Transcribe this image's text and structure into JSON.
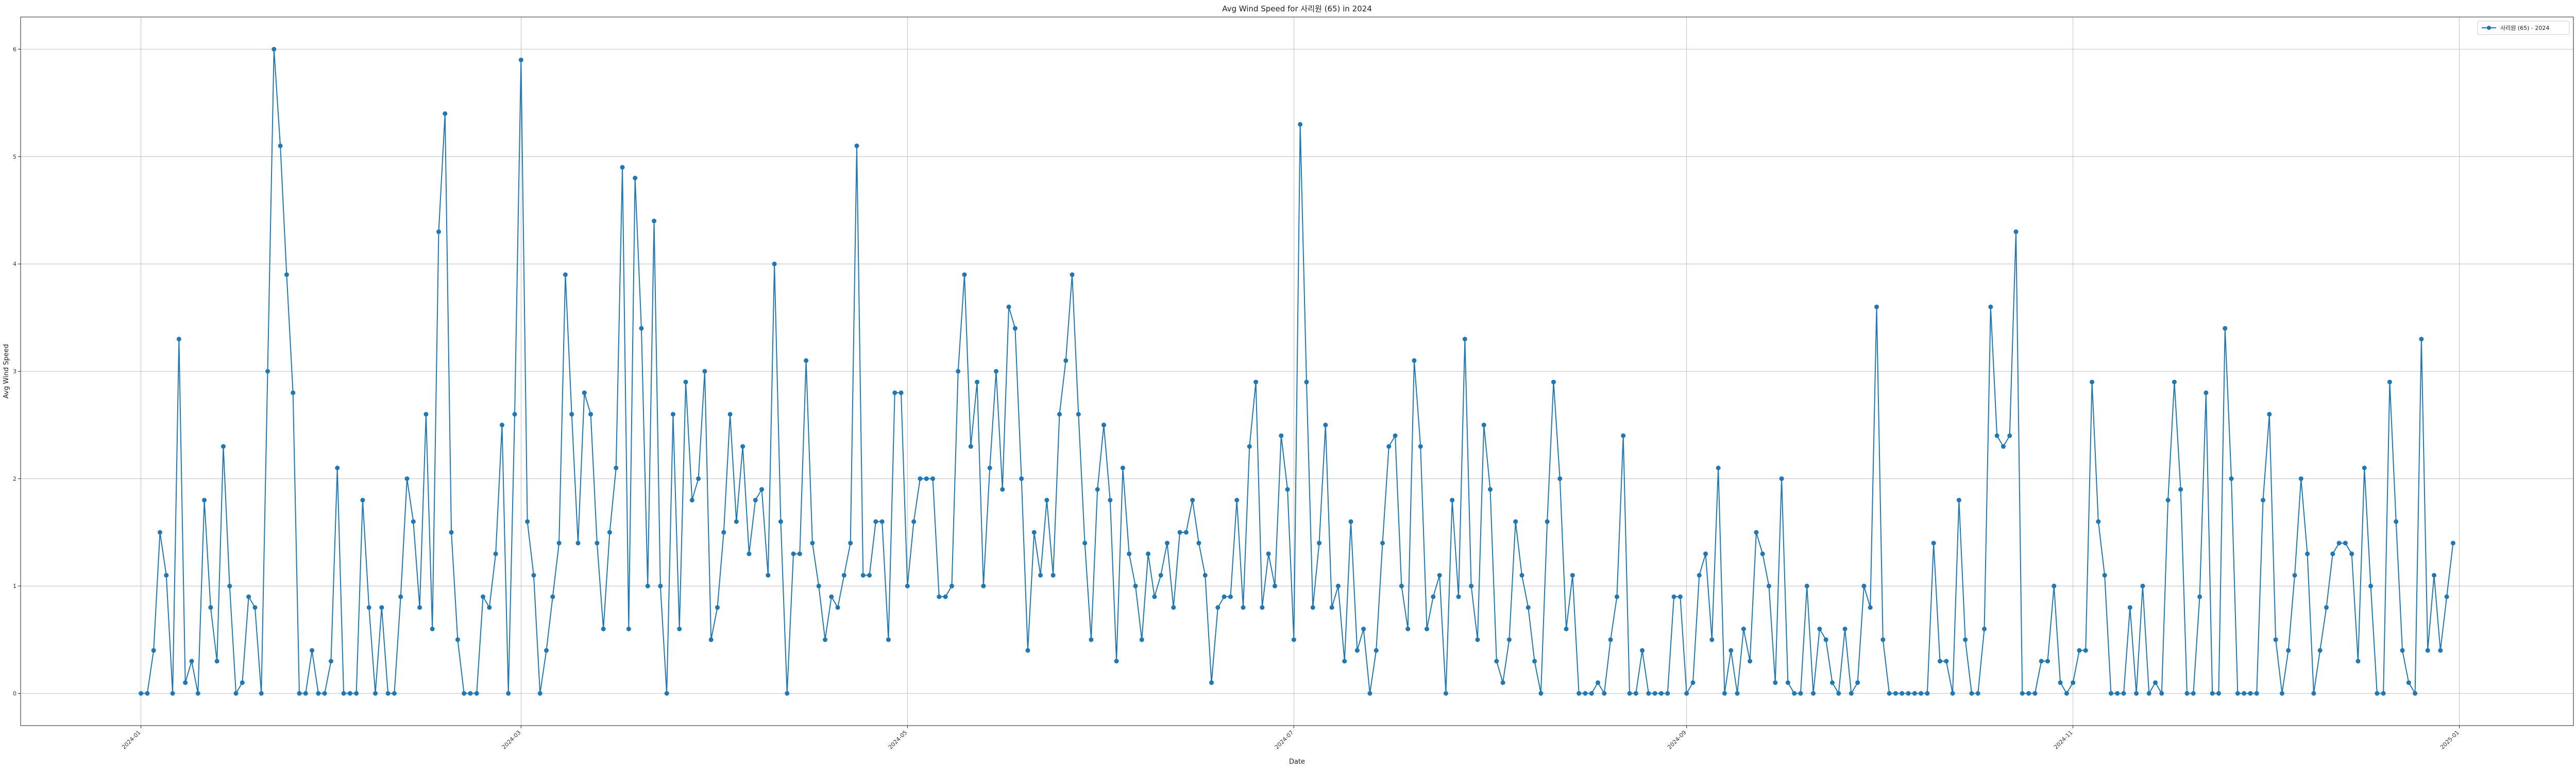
{
  "chart_data": {
    "type": "line",
    "title": "Avg Wind Speed for 사리원 (65) in 2024",
    "xlabel": "Date",
    "ylabel": "Avg Wind Speed",
    "x_start": "2024-01-01",
    "xlim": [
      "2023-12-13",
      "2025-01-19"
    ],
    "ylim": [
      -0.3,
      6.3
    ],
    "y_ticks": [
      0,
      1,
      2,
      3,
      4,
      5,
      6
    ],
    "x_ticks": [
      {
        "date": "2024-01-01",
        "label": "2024-01"
      },
      {
        "date": "2024-03-01",
        "label": "2024-03"
      },
      {
        "date": "2024-05-01",
        "label": "2024-05"
      },
      {
        "date": "2024-07-01",
        "label": "2024-07"
      },
      {
        "date": "2024-09-01",
        "label": "2024-09"
      },
      {
        "date": "2024-11-01",
        "label": "2024-11"
      },
      {
        "date": "2025-01-01",
        "label": "2025-01"
      }
    ],
    "grid": true,
    "legend_position": "top-right",
    "color": "#1f77b4",
    "series": [
      {
        "name": "사리원 (65) - 2024",
        "values": [
          0,
          0,
          0.4,
          1.5,
          1.1,
          0,
          3.3,
          0.1,
          0.3,
          0,
          1.8,
          0.8,
          0.3,
          2.3,
          1,
          0,
          0.1,
          0.9,
          0.8,
          0,
          3,
          6,
          5.1,
          3.9,
          2.8,
          0,
          0,
          0.4,
          0,
          0,
          0.3,
          2.1,
          0,
          0,
          0,
          1.8,
          0.8,
          0,
          0.8,
          0,
          0,
          0.9,
          2,
          1.6,
          0.8,
          2.6,
          0.6,
          4.3,
          5.4,
          1.5,
          0.5,
          0,
          0,
          0,
          0.9,
          0.8,
          1.3,
          2.5,
          0,
          2.6,
          5.9,
          1.6,
          1.1,
          0,
          0.4,
          0.9,
          1.4,
          3.9,
          2.6,
          1.4,
          2.8,
          2.6,
          1.4,
          0.6,
          1.5,
          2.1,
          4.9,
          0.6,
          4.8,
          3.4,
          1,
          4.4,
          1,
          0,
          2.6,
          0.6,
          2.9,
          1.8,
          2,
          3,
          0.5,
          0.8,
          1.5,
          2.6,
          1.6,
          2.3,
          1.3,
          1.8,
          1.9,
          1.1,
          4,
          1.6,
          0,
          1.3,
          1.3,
          3.1,
          1.4,
          1,
          0.5,
          0.9,
          0.8,
          1.1,
          1.4,
          5.1,
          1.1,
          1.1,
          1.6,
          1.6,
          0.5,
          2.8,
          2.8,
          1,
          1.6,
          2,
          2,
          2,
          0.9,
          0.9,
          1,
          3,
          3.9,
          2.3,
          2.9,
          1,
          2.1,
          3,
          1.9,
          3.6,
          3.4,
          2,
          0.4,
          1.5,
          1.1,
          1.8,
          1.1,
          2.6,
          3.1,
          3.9,
          2.6,
          1.4,
          0.5,
          1.9,
          2.5,
          1.8,
          0.3,
          2.1,
          1.3,
          1,
          0.5,
          1.3,
          0.9,
          1.1,
          1.4,
          0.8,
          1.5,
          1.5,
          1.8,
          1.4,
          1.1,
          0.1,
          0.8,
          0.9,
          0.9,
          1.8,
          0.8,
          2.3,
          2.9,
          0.8,
          1.3,
          1,
          2.4,
          1.9,
          0.5,
          5.3,
          2.9,
          0.8,
          1.4,
          2.5,
          0.8,
          1,
          0.3,
          1.6,
          0.4,
          0.6,
          0,
          0.4,
          1.4,
          2.3,
          2.4,
          1,
          0.6,
          3.1,
          2.3,
          0.6,
          0.9,
          1.1,
          0,
          1.8,
          0.9,
          3.3,
          1,
          0.5,
          2.5,
          1.9,
          0.3,
          0.1,
          0.5,
          1.6,
          1.1,
          0.8,
          0.3,
          0,
          1.6,
          2.9,
          2,
          0.6,
          1.1,
          0,
          0,
          0,
          0.1,
          0,
          0.5,
          0.9,
          2.4,
          0,
          0,
          0.4,
          0,
          0,
          0,
          0,
          0.9,
          0.9,
          0,
          0.1,
          1.1,
          1.3,
          0.5,
          2.1,
          0,
          0.4,
          0,
          0.6,
          0.3,
          1.5,
          1.3,
          1,
          0.1,
          2,
          0.1,
          0,
          0,
          1,
          0,
          0.6,
          0.5,
          0.1,
          0,
          0.6,
          0,
          0.1,
          1,
          0.8,
          3.6,
          0.5,
          0,
          0,
          0,
          0,
          0,
          0,
          0,
          1.4,
          0.3,
          0.3,
          0,
          1.8,
          0.5,
          0,
          0,
          0.6,
          3.6,
          2.4,
          2.3,
          2.4,
          4.3,
          0,
          0,
          0,
          0.3,
          0.3,
          1,
          0.1,
          0,
          0.1,
          0.4,
          0.4,
          2.9,
          1.6,
          1.1,
          0,
          0,
          0,
          0.8,
          0,
          1,
          0,
          0.1,
          0,
          1.8,
          2.9,
          1.9,
          0,
          0,
          0.9,
          2.8,
          0,
          0,
          3.4,
          2,
          0,
          0,
          0,
          0,
          1.8,
          2.6,
          0.5,
          0,
          0.4,
          1.1,
          2,
          1.3,
          0,
          0.4,
          0.8,
          1.3,
          1.4,
          1.4,
          1.3,
          0.3,
          2.1,
          1,
          0,
          0,
          2.9,
          1.6,
          0.4,
          0.1,
          0,
          3.3,
          0.4,
          1.1,
          0.4,
          0.9,
          1.4
        ]
      }
    ]
  }
}
